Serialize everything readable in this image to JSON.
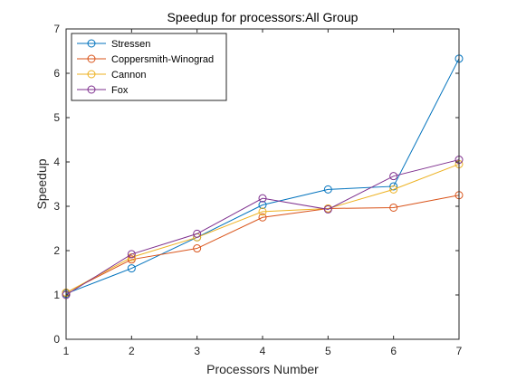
{
  "chart_data": {
    "type": "line",
    "title": "Speedup for processors:All Group",
    "xlabel": "Processors Number",
    "ylabel": "Speedup",
    "x": [
      1,
      2,
      3,
      4,
      5,
      6,
      7
    ],
    "xlim": [
      1,
      7
    ],
    "ylim": [
      0,
      7
    ],
    "xticks": [
      1,
      2,
      3,
      4,
      5,
      6,
      7
    ],
    "yticks": [
      0,
      1,
      2,
      3,
      4,
      5,
      6,
      7
    ],
    "grid": false,
    "legend_position": "top-left",
    "marker": "circle",
    "series": [
      {
        "name": "Stressen",
        "color": "#0072BD",
        "values": [
          1.03,
          1.6,
          2.3,
          3.03,
          3.38,
          3.45,
          6.33
        ]
      },
      {
        "name": "Coppersmith-Winograd",
        "color": "#D95319",
        "values": [
          1.05,
          1.8,
          2.05,
          2.75,
          2.95,
          2.97,
          3.25
        ]
      },
      {
        "name": "Cannon",
        "color": "#EDB120",
        "values": [
          1.05,
          1.85,
          2.3,
          2.88,
          2.95,
          3.38,
          3.95
        ]
      },
      {
        "name": "Fox",
        "color": "#7E2F8E",
        "values": [
          1.0,
          1.92,
          2.38,
          3.18,
          2.93,
          3.68,
          4.05
        ]
      }
    ]
  }
}
